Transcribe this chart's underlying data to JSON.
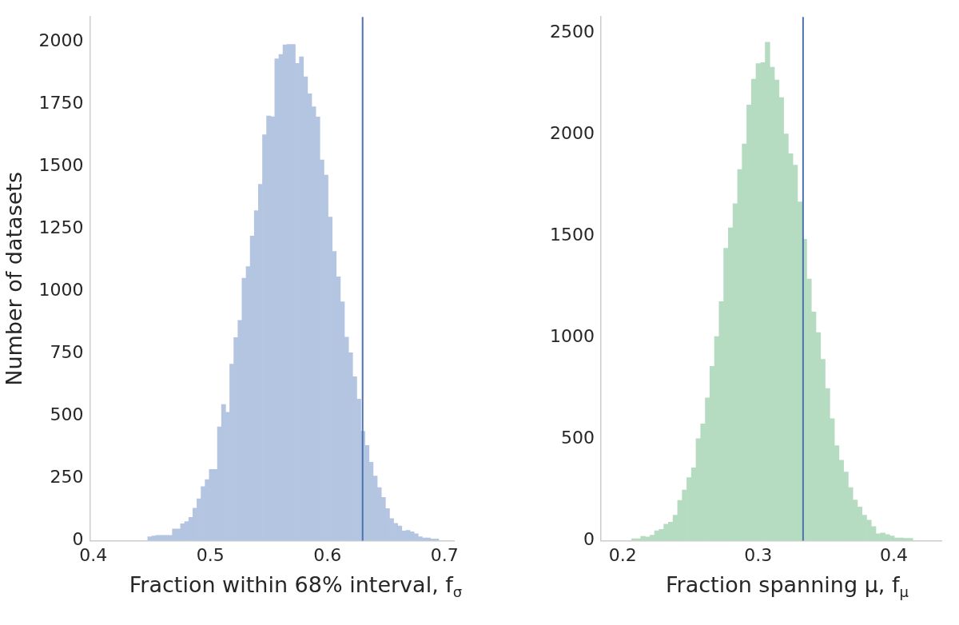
{
  "chart_data": [
    {
      "type": "histogram",
      "xlabel": "Fraction within 68% interval, f$_{σ}$",
      "ylabel": "Number of datasets",
      "color": "#b3c5e0",
      "bins": [
        0.4465,
        0.45,
        0.4535,
        0.457,
        0.4605,
        0.464,
        0.4675,
        0.471,
        0.4745,
        0.478,
        0.4815,
        0.485,
        0.4885,
        0.492,
        0.4955,
        0.499,
        0.5025,
        0.506,
        0.5095,
        0.513,
        0.5165,
        0.52,
        0.5235,
        0.527,
        0.5305,
        0.534,
        0.5375,
        0.541,
        0.5445,
        0.548,
        0.5515,
        0.555,
        0.5585,
        0.562,
        0.5655,
        0.569,
        0.5725,
        0.576,
        0.5795,
        0.583,
        0.5865,
        0.59,
        0.5935,
        0.597,
        0.6005,
        0.604,
        0.6075,
        0.611,
        0.6145,
        0.618,
        0.6215,
        0.625,
        0.6285,
        0.632,
        0.6355,
        0.639,
        0.6425,
        0.646,
        0.6495,
        0.653,
        0.6565,
        0.66,
        0.6635,
        0.667,
        0.6705,
        0.674,
        0.6775,
        0.681,
        0.6845,
        0.688,
        0.6915,
        0.695
      ],
      "values": [
        16,
        19,
        22,
        22,
        22,
        22,
        47,
        47,
        68,
        77,
        94,
        131,
        168,
        217,
        245,
        286,
        286,
        457,
        546,
        515,
        708,
        815,
        884,
        1053,
        1099,
        1222,
        1323,
        1429,
        1628,
        1703,
        1700,
        1932,
        1950,
        1988,
        1990,
        1990,
        1914,
        1940,
        1860,
        1792,
        1740,
        1699,
        1527,
        1466,
        1298,
        1160,
        1058,
        958,
        816,
        754,
        658,
        568,
        439,
        382,
        315,
        260,
        213,
        174,
        129,
        89,
        70,
        59,
        39,
        42,
        36,
        28,
        16,
        11,
        11,
        7,
        7
      ],
      "xlim": [
        0.397,
        0.708
      ],
      "xticks": [
        0.4,
        0.5,
        0.6,
        0.7
      ],
      "ylim": [
        0,
        2100
      ],
      "yticks": [
        0,
        250,
        500,
        750,
        1000,
        1250,
        1500,
        1750,
        2000
      ],
      "ref_lines": [
        {
          "axis": "x",
          "value": 0.63,
          "color": "#4c72b0"
        }
      ]
    },
    {
      "type": "histogram",
      "xlabel": "Fraction spanning μ, f$_{μ}$",
      "color": "#b5dcc0",
      "bins": [
        0.2065,
        0.2099,
        0.2133,
        0.2167,
        0.2201,
        0.2235,
        0.2269,
        0.2303,
        0.2337,
        0.2371,
        0.2405,
        0.2439,
        0.2473,
        0.2507,
        0.2541,
        0.2575,
        0.2609,
        0.2643,
        0.2677,
        0.2711,
        0.2745,
        0.2779,
        0.2813,
        0.2847,
        0.2881,
        0.2915,
        0.2949,
        0.2983,
        0.3017,
        0.3051,
        0.3085,
        0.3119,
        0.3153,
        0.3187,
        0.3221,
        0.3255,
        0.3289,
        0.3323,
        0.3357,
        0.3391,
        0.3425,
        0.3459,
        0.3493,
        0.3527,
        0.3561,
        0.3595,
        0.3629,
        0.3663,
        0.3697,
        0.3731,
        0.3765,
        0.3799,
        0.3833,
        0.3867,
        0.3901,
        0.3935,
        0.3969,
        0.4003,
        0.4037,
        0.4071,
        0.4105,
        0.4139
      ],
      "values": [
        10,
        10,
        22,
        19,
        28,
        49,
        56,
        82,
        92,
        126,
        199,
        250,
        311,
        359,
        503,
        576,
        704,
        859,
        1006,
        1178,
        1441,
        1541,
        1660,
        1829,
        1955,
        2146,
        2273,
        2350,
        2355,
        2455,
        2332,
        2269,
        2183,
        2004,
        1906,
        1850,
        1669,
        1485,
        1289,
        1127,
        1026,
        894,
        750,
        601,
        469,
        397,
        339,
        262,
        201,
        166,
        126,
        101,
        70,
        35,
        38,
        31,
        24,
        14,
        14,
        12,
        12
      ],
      "xlim": [
        0.184,
        0.435
      ],
      "xticks": [
        0.2,
        0.3,
        0.4
      ],
      "ylim": [
        0,
        2580
      ],
      "yticks": [
        0,
        500,
        1000,
        1500,
        2000,
        2500
      ],
      "ref_lines": [
        {
          "axis": "x",
          "value": 0.333,
          "color": "#4c72b0"
        }
      ]
    }
  ]
}
